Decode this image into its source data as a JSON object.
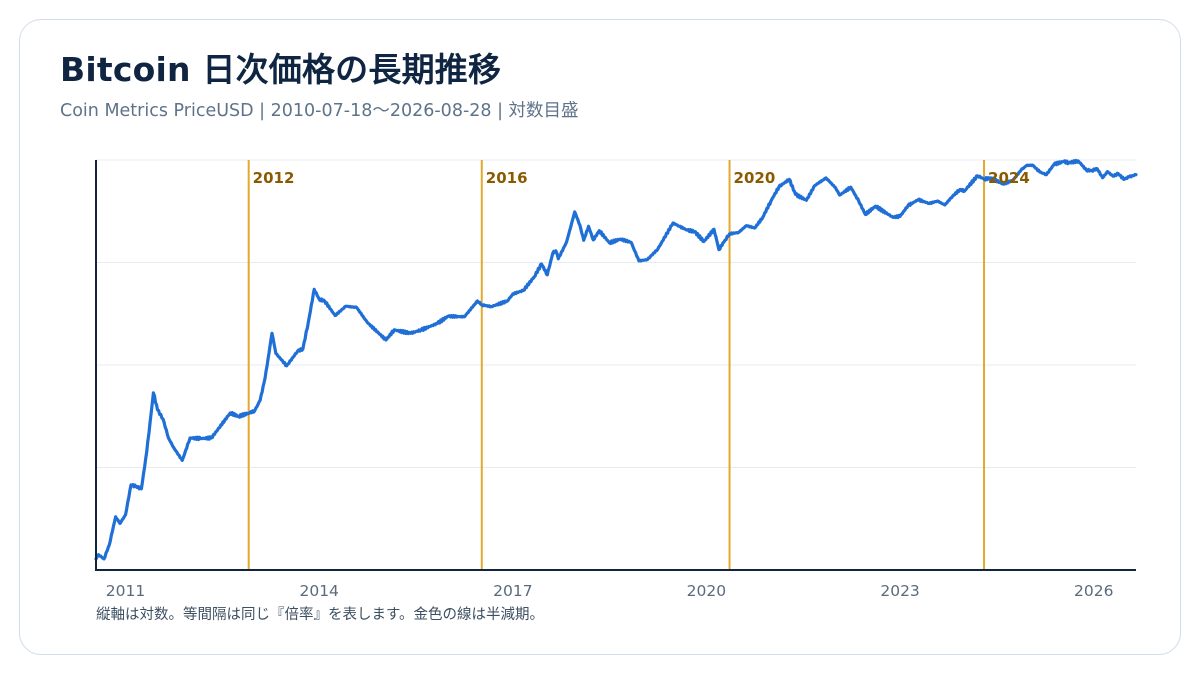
{
  "header": {
    "title": "Bitcoin 日次価格の長期推移",
    "subtitle": "Coin Metrics PriceUSD | 2010-07-18〜2026-08-28 | 対数目盛"
  },
  "footer": {
    "note": "縦軸は対数。等間隔は同じ『倍率』を表します。金色の線は半減期。"
  },
  "colors": {
    "line": "#1f6fd6",
    "halving": "#e3a82e",
    "halving_label": "#8a5a00",
    "grid": "#e7ebf0",
    "axis": "#0f2542",
    "tick_label": "#5a6b7d"
  },
  "chart_data": {
    "type": "line",
    "title": "Bitcoin 日次価格の長期推移",
    "xlabel": "",
    "ylabel": "",
    "y_scale": "log",
    "ylim": [
      0.04,
      130000
    ],
    "xlim": [
      "2010-07-18",
      "2026-08-28"
    ],
    "x_ticks": [
      "2011",
      "2014",
      "2017",
      "2020",
      "2023",
      "2026"
    ],
    "grid": true,
    "series": [
      {
        "x": [
          "2010-07-18",
          "2010-08-01",
          "2010-09-01",
          "2010-10-01",
          "2010-11-06",
          "2010-12-01",
          "2011-01-01",
          "2011-02-01",
          "2011-03-01",
          "2011-04-01",
          "2011-05-01",
          "2011-06-08",
          "2011-07-01",
          "2011-08-01",
          "2011-09-01",
          "2011-10-01",
          "2011-11-18",
          "2012-01-01",
          "2012-03-01",
          "2012-05-01",
          "2012-08-16",
          "2012-10-01",
          "2012-11-28",
          "2013-01-01",
          "2013-02-01",
          "2013-03-01",
          "2013-04-09",
          "2013-05-01",
          "2013-07-01",
          "2013-09-01",
          "2013-10-01",
          "2013-11-01",
          "2013-12-04",
          "2014-01-01",
          "2014-02-01",
          "2014-04-01",
          "2014-06-01",
          "2014-08-01",
          "2014-10-01",
          "2015-01-14",
          "2015-03-01",
          "2015-06-01",
          "2015-08-01",
          "2015-11-01",
          "2016-01-01",
          "2016-04-01",
          "2016-06-15",
          "2016-07-09",
          "2016-09-01",
          "2016-12-01",
          "2017-01-01",
          "2017-03-01",
          "2017-05-01",
          "2017-06-12",
          "2017-07-15",
          "2017-08-15",
          "2017-09-01",
          "2017-09-15",
          "2017-11-01",
          "2017-12-17",
          "2018-01-15",
          "2018-02-06",
          "2018-03-05",
          "2018-04-01",
          "2018-05-05",
          "2018-07-01",
          "2018-09-01",
          "2018-11-01",
          "2018-12-15",
          "2019-02-01",
          "2019-04-01",
          "2019-06-26",
          "2019-08-01",
          "2019-09-15",
          "2019-10-26",
          "2019-12-18",
          "2020-02-13",
          "2020-03-12",
          "2020-04-15",
          "2020-05-11",
          "2020-07-01",
          "2020-08-15",
          "2020-10-01",
          "2020-11-15",
          "2020-12-31",
          "2021-02-15",
          "2021-04-14",
          "2021-05-19",
          "2021-07-20",
          "2021-09-05",
          "2021-11-08",
          "2022-01-01",
          "2022-01-24",
          "2022-03-28",
          "2022-05-12",
          "2022-06-18",
          "2022-08-15",
          "2022-11-21",
          "2023-01-01",
          "2023-02-15",
          "2023-04-14",
          "2023-06-15",
          "2023-08-01",
          "2023-09-11",
          "2023-10-25",
          "2023-12-05",
          "2024-01-01",
          "2024-03-14",
          "2024-04-20",
          "2024-06-01",
          "2024-08-05",
          "2024-10-01",
          "2024-11-15",
          "2024-12-17",
          "2025-01-20",
          "2025-03-01",
          "2025-04-08",
          "2025-05-22",
          "2025-07-14",
          "2025-08-14",
          "2025-10-06",
          "2025-11-20",
          "2025-12-20",
          "2026-01-20",
          "2026-02-20",
          "2026-03-20",
          "2026-04-20",
          "2026-05-20",
          "2026-06-20",
          "2026-07-20",
          "2026-08-28"
        ],
        "y": [
          0.06,
          0.07,
          0.06,
          0.1,
          0.28,
          0.22,
          0.3,
          0.9,
          0.85,
          0.78,
          3,
          26,
          14,
          10,
          5,
          3.5,
          2.2,
          5,
          4.9,
          5,
          12.5,
          11,
          12.4,
          13.5,
          20,
          45,
          230,
          110,
          70,
          120,
          130,
          350,
          1150,
          800,
          750,
          440,
          620,
          590,
          340,
          180,
          260,
          230,
          260,
          330,
          430,
          420,
          750,
          650,
          610,
          750,
          970,
          1100,
          1800,
          2900,
          1950,
          4300,
          4700,
          3500,
          6500,
          19500,
          12000,
          6900,
          11500,
          7000,
          9800,
          6300,
          7200,
          6400,
          3250,
          3400,
          5000,
          13000,
          11500,
          10000,
          9500,
          6600,
          10300,
          4900,
          6900,
          8700,
          9200,
          11800,
          10800,
          16000,
          28900,
          49000,
          64000,
          37000,
          29800,
          51000,
          67500,
          47000,
          36000,
          48000,
          29000,
          17800,
          24000,
          16000,
          16600,
          24500,
          30500,
          26500,
          29000,
          25100,
          34500,
          44000,
          42000,
          73000,
          65000,
          67000,
          54000,
          62000,
          90000,
          106000,
          108000,
          84000,
          76000,
          111500,
          123000,
          118000,
          125000,
          90000,
          88000,
          95000,
          68000,
          85000,
          72000,
          79000,
          64000,
          70000,
          76000
        ]
      }
    ],
    "halvings": [
      {
        "date": "2012-11-28",
        "label": "2012"
      },
      {
        "date": "2016-07-09",
        "label": "2016"
      },
      {
        "date": "2020-05-11",
        "label": "2020"
      },
      {
        "date": "2024-04-20",
        "label": "2024"
      }
    ]
  }
}
